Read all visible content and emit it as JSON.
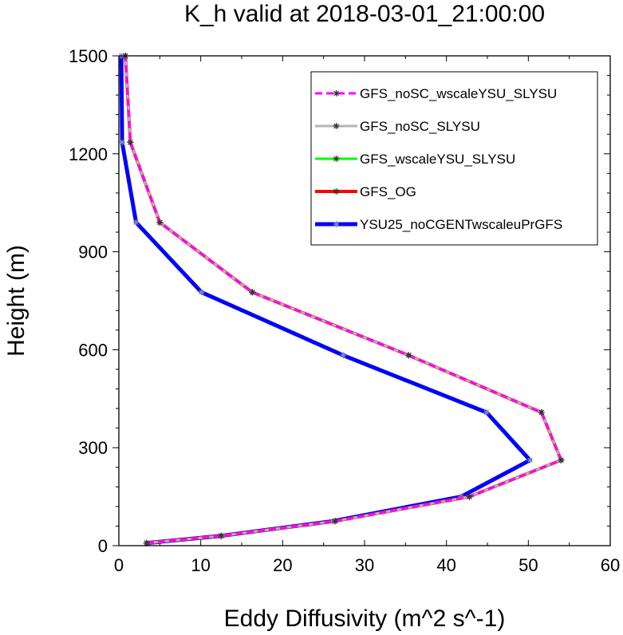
{
  "chart_data": {
    "type": "line",
    "title": "K_h valid at 2018-03-01_21:00:00",
    "xlabel": "Eddy Diffusivity (m^2 s^-1)",
    "ylabel": "Height (m)",
    "xlim": [
      0,
      60
    ],
    "ylim": [
      0,
      1500
    ],
    "xticks": [
      0,
      10,
      20,
      30,
      40,
      50,
      60
    ],
    "xtick_labels": [
      "0",
      "10",
      "20",
      "30",
      "40",
      "50",
      "60"
    ],
    "yticks": [
      0,
      300,
      600,
      900,
      1200,
      1500
    ],
    "ytick_labels": [
      "0",
      "300",
      "600",
      "900",
      "1200",
      "1500"
    ],
    "grid": false,
    "legend_position": "top-right",
    "series": [
      {
        "name": "GFS_noSC_wscaleYSU_SLYSU",
        "color": "#ff00ff",
        "line_style": "dashed",
        "marker": "asterisk",
        "x": [
          3.4,
          12.5,
          26.4,
          42.8,
          54.0,
          51.6,
          35.4,
          16.3,
          5.0,
          1.4,
          0.8
        ],
        "y": [
          8,
          30,
          75,
          150,
          262,
          408,
          583,
          776,
          990,
          1235,
          1500
        ]
      },
      {
        "name": "GFS_noSC_SLYSU",
        "color": "#b4b4b4",
        "line_style": "solid",
        "marker": "asterisk",
        "x": [
          3.4,
          12.5,
          26.4,
          42.8,
          54.0,
          51.6,
          35.4,
          16.3,
          5.0,
          1.4,
          0.8
        ],
        "y": [
          8,
          30,
          75,
          150,
          262,
          408,
          583,
          776,
          990,
          1235,
          1500
        ]
      },
      {
        "name": "GFS_wscaleYSU_SLYSU",
        "color": "#00ff00",
        "line_style": "solid",
        "marker": "asterisk",
        "x": [
          3.4,
          12.5,
          26.4,
          42.8,
          54.0,
          51.6,
          35.4,
          16.3,
          5.0,
          1.4,
          0.8
        ],
        "y": [
          8,
          30,
          75,
          150,
          262,
          408,
          583,
          776,
          990,
          1235,
          1500
        ]
      },
      {
        "name": "GFS_OG",
        "color": "#ff0000",
        "line_style": "solid",
        "marker": "asterisk",
        "x": [
          3.4,
          12.5,
          26.4,
          42.8,
          54.0,
          51.6,
          35.4,
          16.3,
          5.0,
          1.4,
          0.8
        ],
        "y": [
          8,
          30,
          75,
          150,
          262,
          408,
          583,
          776,
          990,
          1235,
          1500
        ]
      },
      {
        "name": "YSU25_noCGENTwscaleuPrGFS",
        "color": "#0000ff",
        "line_style": "solid",
        "marker": "asterisk",
        "x": [
          3.4,
          12.5,
          26.1,
          41.8,
          50.2,
          44.9,
          27.4,
          10.1,
          2.1,
          0.4,
          0.3
        ],
        "y": [
          8,
          30,
          75,
          150,
          262,
          408,
          583,
          776,
          990,
          1235,
          1500
        ]
      }
    ]
  }
}
